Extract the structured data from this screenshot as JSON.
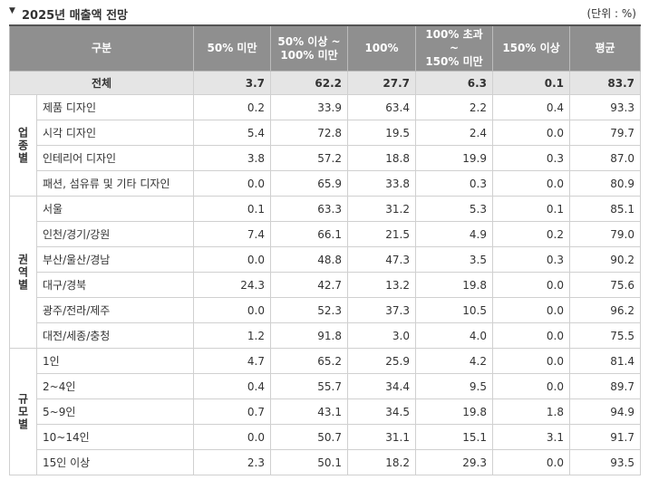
{
  "title": "2025년 매출액 전망",
  "unit": "(단위 : %)",
  "table": {
    "header": [
      "구분",
      "50% 미만",
      "50% 이상 ~\n100% 미만",
      "100%",
      "100% 초과 ~\n150% 미만",
      "150% 이상",
      "평균"
    ],
    "total": {
      "label": "전체",
      "values": [
        "3.7",
        "62.2",
        "27.7",
        "6.3",
        "0.1",
        "83.7"
      ]
    },
    "groups": [
      {
        "label": "업종별",
        "rows": [
          {
            "label": "제품 디자인",
            "values": [
              "0.2",
              "33.9",
              "63.4",
              "2.2",
              "0.4",
              "93.3"
            ]
          },
          {
            "label": "시각 디자인",
            "values": [
              "5.4",
              "72.8",
              "19.5",
              "2.4",
              "0.0",
              "79.7"
            ]
          },
          {
            "label": "인테리어 디자인",
            "values": [
              "3.8",
              "57.2",
              "18.8",
              "19.9",
              "0.3",
              "87.0"
            ]
          },
          {
            "label": "패션, 섬유류 및 기타 디자인",
            "values": [
              "0.0",
              "65.9",
              "33.8",
              "0.3",
              "0.0",
              "80.9"
            ]
          }
        ]
      },
      {
        "label": "권역별",
        "rows": [
          {
            "label": "서울",
            "values": [
              "0.1",
              "63.3",
              "31.2",
              "5.3",
              "0.1",
              "85.1"
            ]
          },
          {
            "label": "인천/경기/강원",
            "values": [
              "7.4",
              "66.1",
              "21.5",
              "4.9",
              "0.2",
              "79.0"
            ]
          },
          {
            "label": "부산/울산/경남",
            "values": [
              "0.0",
              "48.8",
              "47.3",
              "3.5",
              "0.3",
              "90.2"
            ]
          },
          {
            "label": "대구/경북",
            "values": [
              "24.3",
              "42.7",
              "13.2",
              "19.8",
              "0.0",
              "75.6"
            ]
          },
          {
            "label": "광주/전라/제주",
            "values": [
              "0.0",
              "52.3",
              "37.3",
              "10.5",
              "0.0",
              "96.2"
            ]
          },
          {
            "label": "대전/세종/충청",
            "values": [
              "1.2",
              "91.8",
              "3.0",
              "4.0",
              "0.0",
              "75.5"
            ]
          }
        ]
      },
      {
        "label": "규모별",
        "rows": [
          {
            "label": "1인",
            "values": [
              "4.7",
              "65.2",
              "25.9",
              "4.2",
              "0.0",
              "81.4"
            ]
          },
          {
            "label": "2~4인",
            "values": [
              "0.4",
              "55.7",
              "34.4",
              "9.5",
              "0.0",
              "89.7"
            ]
          },
          {
            "label": "5~9인",
            "values": [
              "0.7",
              "43.1",
              "34.5",
              "19.8",
              "1.8",
              "94.9"
            ]
          },
          {
            "label": "10~14인",
            "values": [
              "0.0",
              "50.7",
              "31.1",
              "15.1",
              "3.1",
              "91.7"
            ]
          },
          {
            "label": "15인 이상",
            "values": [
              "2.3",
              "50.1",
              "18.2",
              "29.3",
              "0.0",
              "93.5"
            ]
          }
        ]
      }
    ]
  }
}
